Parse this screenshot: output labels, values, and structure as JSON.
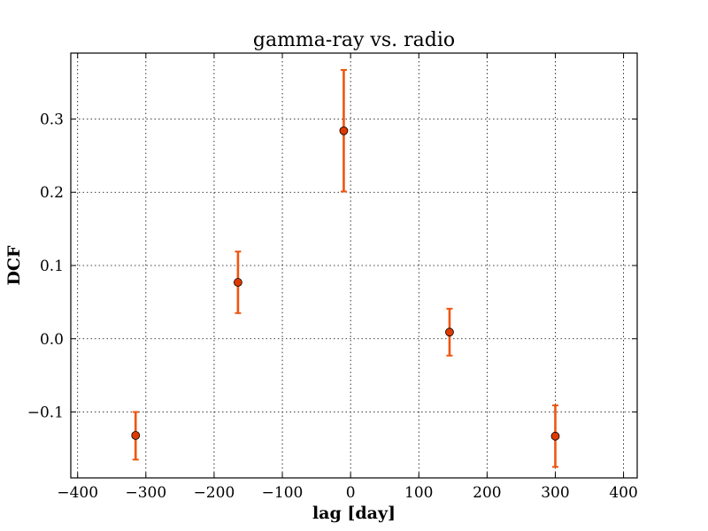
{
  "chart_data": {
    "type": "scatter",
    "title": "gamma-ray vs. radio",
    "xlabel": "lag [day]",
    "ylabel": "DCF",
    "xlim": [
      -410,
      420
    ],
    "ylim": [
      -0.19,
      0.39
    ],
    "xticks": [
      -400,
      -300,
      -200,
      -100,
      0,
      100,
      200,
      300,
      400
    ],
    "xtick_labels": [
      "−400",
      "−300",
      "−200",
      "−100",
      "0",
      "100",
      "200",
      "300",
      "400"
    ],
    "yticks": [
      -0.1,
      0.0,
      0.1,
      0.2,
      0.3
    ],
    "ytick_labels": [
      "−0.1",
      "0.0",
      "0.1",
      "0.2",
      "0.3"
    ],
    "grid": true,
    "marker_color": "#dd3a00",
    "errorbar_color": "#ee5511",
    "points": [
      {
        "x": -315,
        "y": -0.132,
        "ylow": -0.165,
        "yhigh": -0.1
      },
      {
        "x": -165,
        "y": 0.077,
        "ylow": 0.035,
        "yhigh": 0.119
      },
      {
        "x": -10,
        "y": 0.284,
        "ylow": 0.201,
        "yhigh": 0.367
      },
      {
        "x": 145,
        "y": 0.009,
        "ylow": -0.023,
        "yhigh": 0.041
      },
      {
        "x": 300,
        "y": -0.133,
        "ylow": -0.175,
        "yhigh": -0.091
      }
    ]
  }
}
